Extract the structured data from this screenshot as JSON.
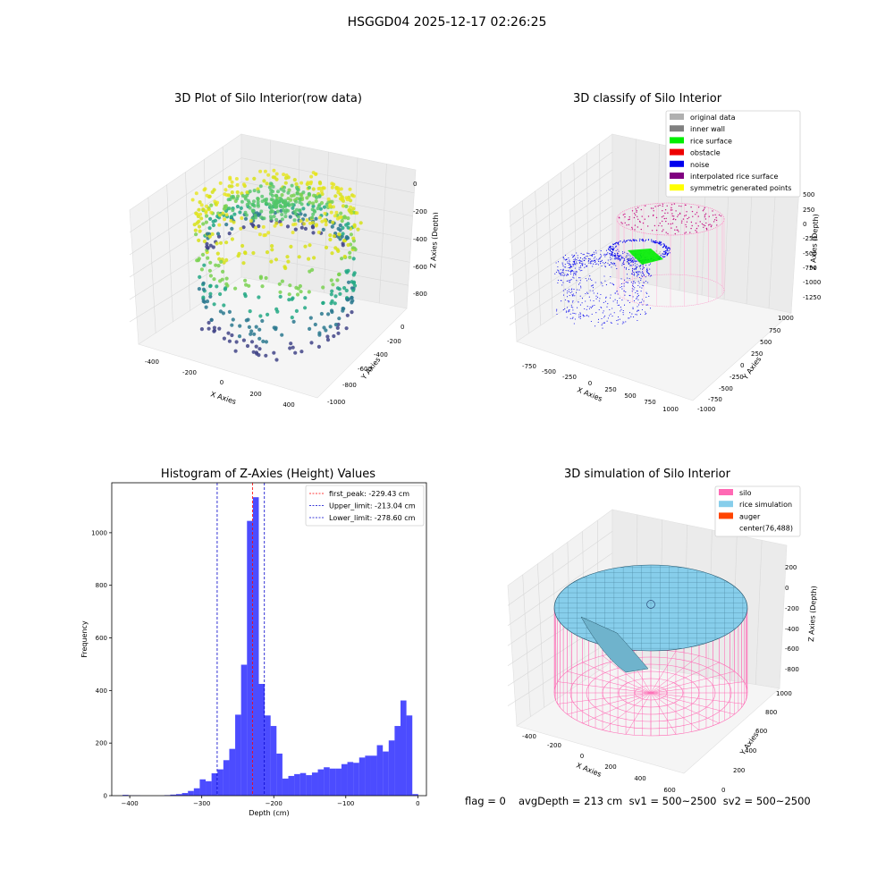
{
  "suptitle": "HSGGD04 2025-12-17 02:26:25",
  "panels": {
    "raw": {
      "title": "3D Plot of Silo Interior(row data)",
      "xlabel": "X Axies",
      "ylabel": "Y Axies",
      "zlabel": "Z Axies (Depth)",
      "xticks": [
        "-400",
        "-200",
        "0",
        "200",
        "400"
      ],
      "yticks": [
        "0",
        "-200",
        "-400",
        "-600",
        "-800",
        "-1000"
      ],
      "zticks": [
        "0",
        "-200",
        "-400",
        "-600",
        "-800"
      ]
    },
    "classify": {
      "title": "3D classify of Silo Interior",
      "xlabel": "X Axies",
      "ylabel": "Y Axies",
      "zlabel": "Z Axies (Depth)",
      "xticks": [
        "-750",
        "-500",
        "-250",
        "0",
        "250",
        "500",
        "750",
        "1000"
      ],
      "yticks": [
        "1000",
        "750",
        "500",
        "250",
        "0",
        "-250",
        "-500",
        "-750",
        "-1000"
      ],
      "zticks": [
        "500",
        "250",
        "0",
        "-250",
        "-500",
        "-750",
        "-1000",
        "-1250"
      ],
      "legend": [
        {
          "label": "original data",
          "color": "#b0b0b0"
        },
        {
          "label": "inner wall",
          "color": "#808080"
        },
        {
          "label": "rice surface",
          "color": "#00ee00"
        },
        {
          "label": "obstacle",
          "color": "#ee0000"
        },
        {
          "label": "noise",
          "color": "#0000ee"
        },
        {
          "label": "interpolated rice surface",
          "color": "#800080"
        },
        {
          "label": "symmetric generated points",
          "color": "#ffff00"
        }
      ]
    },
    "simulation": {
      "title": "3D simulation of Silo Interior",
      "xlabel": "X Axies",
      "ylabel": "Y Axies",
      "zlabel": "Z Axies (Depth)",
      "xticks": [
        "-400",
        "-200",
        "0",
        "200",
        "400",
        "600"
      ],
      "yticks": [
        "1000",
        "800",
        "600",
        "400",
        "200",
        "0"
      ],
      "zticks": [
        "200",
        "0",
        "-200",
        "-400",
        "-600",
        "-800"
      ],
      "legend": [
        {
          "label": "silo",
          "color": "#ff69b4"
        },
        {
          "label": "rice simulation",
          "color": "#87ceeb"
        },
        {
          "label": "auger",
          "color": "#ff4500"
        },
        {
          "label": "center(76,488)",
          "color": ""
        }
      ]
    },
    "footer": {
      "flag": "flag = 0",
      "stats": "avgDepth = 213 cm  sv1 = 500~2500  sv2 = 500~2500"
    }
  },
  "chart_data": {
    "type": "bar",
    "title": "Histogram of Z-Axies (Height) Values",
    "xlabel": "Depth (cm)",
    "ylabel": "Frequency",
    "xlim": [
      -425,
      12
    ],
    "ylim": [
      0,
      1190
    ],
    "xticks": [
      -400,
      -300,
      -200,
      -100,
      0
    ],
    "yticks": [
      0,
      200,
      400,
      600,
      800,
      1000
    ],
    "bar_color": "#0000ff",
    "bin_width": 8.2,
    "bins": [
      {
        "x": -410,
        "v": 3
      },
      {
        "x": -401.8,
        "v": 1
      },
      {
        "x": -393.6,
        "v": 1
      },
      {
        "x": -352,
        "v": 2
      },
      {
        "x": -343.8,
        "v": 4
      },
      {
        "x": -335.6,
        "v": 6
      },
      {
        "x": -327.4,
        "v": 10
      },
      {
        "x": -319.2,
        "v": 18
      },
      {
        "x": -311,
        "v": 28
      },
      {
        "x": -302.8,
        "v": 62
      },
      {
        "x": -294.6,
        "v": 55
      },
      {
        "x": -286.4,
        "v": 85
      },
      {
        "x": -278.2,
        "v": 100
      },
      {
        "x": -270,
        "v": 135
      },
      {
        "x": -261.8,
        "v": 178
      },
      {
        "x": -253.6,
        "v": 308
      },
      {
        "x": -245.4,
        "v": 498
      },
      {
        "x": -237.2,
        "v": 1045
      },
      {
        "x": -229,
        "v": 1135
      },
      {
        "x": -220.8,
        "v": 425
      },
      {
        "x": -212.6,
        "v": 305
      },
      {
        "x": -204.4,
        "v": 265
      },
      {
        "x": -196.2,
        "v": 160
      },
      {
        "x": -188,
        "v": 65
      },
      {
        "x": -179.8,
        "v": 75
      },
      {
        "x": -171.6,
        "v": 82
      },
      {
        "x": -163.4,
        "v": 86
      },
      {
        "x": -155.2,
        "v": 78
      },
      {
        "x": -147,
        "v": 88
      },
      {
        "x": -138.8,
        "v": 100
      },
      {
        "x": -130.6,
        "v": 108
      },
      {
        "x": -122.4,
        "v": 103
      },
      {
        "x": -114.2,
        "v": 103
      },
      {
        "x": -106,
        "v": 120
      },
      {
        "x": -97.8,
        "v": 128
      },
      {
        "x": -89.6,
        "v": 125
      },
      {
        "x": -81.4,
        "v": 145
      },
      {
        "x": -73.2,
        "v": 152
      },
      {
        "x": -65,
        "v": 152
      },
      {
        "x": -56.8,
        "v": 192
      },
      {
        "x": -48.6,
        "v": 168
      },
      {
        "x": -40.4,
        "v": 210
      },
      {
        "x": -32.2,
        "v": 265
      },
      {
        "x": -24,
        "v": 362
      },
      {
        "x": -15.8,
        "v": 305
      },
      {
        "x": -7.6,
        "v": 6
      }
    ],
    "lines": [
      {
        "label": "first_peak: -229.43 cm",
        "x": -229.43,
        "color": "#ff0000"
      },
      {
        "label": "Upper_limit: -213.04 cm",
        "x": -213.04,
        "color": "#0000cc"
      },
      {
        "label": "Lower_limit: -278.60 cm",
        "x": -278.6,
        "color": "#0000cc"
      }
    ]
  }
}
